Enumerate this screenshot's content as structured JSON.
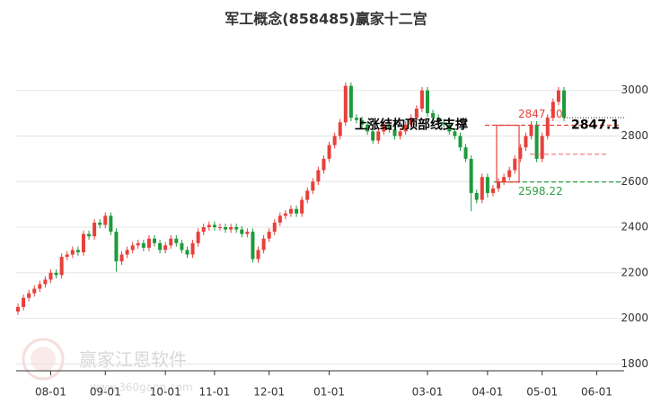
{
  "chart_data": {
    "type": "candlestick",
    "title": "军工概念(858485)赢家十二宫",
    "categories": [
      null,
      null,
      null,
      null,
      null,
      null,
      "08-01",
      null,
      null,
      null,
      null,
      null,
      null,
      null,
      null,
      null,
      "09-01",
      null,
      null,
      null,
      null,
      null,
      null,
      null,
      null,
      null,
      null,
      "10-01",
      null,
      null,
      null,
      null,
      null,
      null,
      null,
      null,
      "11-01",
      null,
      null,
      null,
      null,
      null,
      null,
      null,
      null,
      null,
      "12-01",
      null,
      null,
      null,
      null,
      null,
      null,
      null,
      null,
      null,
      null,
      "01-01",
      null,
      null,
      null,
      null,
      null,
      null,
      null,
      null,
      null,
      null,
      null,
      null,
      null,
      null,
      null,
      null,
      null,
      "03-01",
      null,
      null,
      null,
      null,
      null,
      null,
      null,
      null,
      null,
      null,
      "04-01",
      null,
      null,
      null,
      null,
      null,
      null,
      null,
      null,
      null,
      "05-01",
      null,
      null,
      null,
      null,
      null,
      null,
      null,
      null,
      null,
      "06-01",
      null,
      null,
      null
    ],
    "open": [
      2030,
      2050,
      2090,
      2110,
      2130,
      2150,
      2170,
      2200,
      2190,
      2270,
      2280,
      2300,
      2290,
      2370,
      2360,
      2420,
      2410,
      2450,
      2380,
      2250,
      2280,
      2300,
      2320,
      2330,
      2310,
      2350,
      2330,
      2300,
      2320,
      2350,
      2330,
      2300,
      2280,
      2330,
      2380,
      2400,
      2410,
      2400,
      2400,
      2390,
      2400,
      2390,
      2370,
      2380,
      2260,
      2300,
      2350,
      2380,
      2420,
      2450,
      2460,
      2480,
      2460,
      2520,
      2560,
      2600,
      2650,
      2700,
      2760,
      2800,
      2860,
      3020,
      2880,
      2870,
      2850,
      2820,
      2780,
      2820,
      2850,
      2830,
      2800,
      2820,
      2850,
      2880,
      2920,
      3000,
      2900,
      2880,
      2860,
      2850,
      2820,
      2800,
      2750,
      2700,
      2550,
      2520,
      2620,
      2550,
      2570,
      2600,
      2620,
      2650,
      2700,
      2750,
      2800,
      2850,
      2700,
      2800,
      2880,
      2950,
      3000,
      null,
      null,
      null,
      null,
      null,
      null,
      null,
      null,
      null
    ],
    "high": [
      2065,
      2105,
      2125,
      2145,
      2165,
      2185,
      2215,
      2215,
      2285,
      2295,
      2315,
      2315,
      2385,
      2385,
      2435,
      2435,
      2465,
      2465,
      2395,
      2295,
      2315,
      2335,
      2345,
      2345,
      2365,
      2365,
      2345,
      2335,
      2365,
      2365,
      2345,
      2315,
      2345,
      2395,
      2415,
      2425,
      2425,
      2415,
      2415,
      2415,
      2415,
      2405,
      2395,
      2395,
      2315,
      2365,
      2395,
      2435,
      2465,
      2475,
      2495,
      2495,
      2535,
      2575,
      2615,
      2665,
      2715,
      2775,
      2815,
      2875,
      3035,
      3035,
      2895,
      2885,
      2865,
      2835,
      2835,
      2865,
      2865,
      2845,
      2835,
      2865,
      2895,
      2935,
      3015,
      3015,
      2915,
      2895,
      2875,
      2865,
      2835,
      2815,
      2765,
      2715,
      2565,
      2635,
      2635,
      2585,
      2615,
      2635,
      2665,
      2715,
      2765,
      2815,
      2865,
      2865,
      2815,
      2895,
      2965,
      3015,
      3015,
      null,
      null,
      null,
      null,
      null,
      null,
      null,
      null,
      null
    ],
    "low": [
      2015,
      2035,
      2075,
      2095,
      2115,
      2135,
      2155,
      2175,
      2175,
      2255,
      2265,
      2275,
      2275,
      2345,
      2345,
      2395,
      2395,
      2365,
      2205,
      2235,
      2265,
      2285,
      2305,
      2295,
      2295,
      2315,
      2285,
      2285,
      2305,
      2315,
      2285,
      2265,
      2265,
      2315,
      2365,
      2385,
      2385,
      2385,
      2375,
      2375,
      2375,
      2355,
      2355,
      2245,
      2245,
      2285,
      2335,
      2365,
      2405,
      2435,
      2445,
      2445,
      2445,
      2505,
      2545,
      2585,
      2635,
      2685,
      2745,
      2785,
      2845,
      2865,
      2855,
      2835,
      2805,
      2765,
      2765,
      2805,
      2815,
      2785,
      2785,
      2805,
      2835,
      2865,
      2905,
      2885,
      2865,
      2845,
      2835,
      2805,
      2785,
      2735,
      2685,
      2470,
      2505,
      2505,
      2530,
      2535,
      2555,
      2585,
      2605,
      2635,
      2685,
      2735,
      2785,
      2685,
      2685,
      2785,
      2865,
      2935,
      2865,
      null,
      null,
      null,
      null,
      null,
      null,
      null,
      null,
      null
    ],
    "close": [
      2050,
      2090,
      2110,
      2130,
      2150,
      2170,
      2200,
      2190,
      2270,
      2280,
      2300,
      2290,
      2370,
      2360,
      2420,
      2410,
      2450,
      2380,
      2250,
      2280,
      2300,
      2320,
      2330,
      2310,
      2350,
      2330,
      2300,
      2320,
      2350,
      2330,
      2300,
      2280,
      2330,
      2380,
      2400,
      2410,
      2400,
      2400,
      2390,
      2400,
      2390,
      2370,
      2380,
      2260,
      2300,
      2350,
      2380,
      2420,
      2450,
      2460,
      2480,
      2460,
      2520,
      2560,
      2600,
      2650,
      2700,
      2760,
      2800,
      2860,
      3020,
      2880,
      2870,
      2850,
      2820,
      2780,
      2820,
      2850,
      2830,
      2800,
      2820,
      2850,
      2880,
      2920,
      3000,
      2900,
      2880,
      2860,
      2850,
      2820,
      2800,
      2750,
      2700,
      2550,
      2520,
      2620,
      2550,
      2570,
      2600,
      2620,
      2650,
      2700,
      2750,
      2800,
      2850,
      2700,
      2800,
      2880,
      2950,
      3000,
      2880,
      null,
      null,
      null,
      null,
      null,
      null,
      null,
      null,
      null
    ],
    "up_color": "#e8403a",
    "down_color": "#1e9a3c",
    "ylim": [
      1770,
      3180
    ],
    "yticks": [
      1800,
      2000,
      2200,
      2400,
      2600,
      2800,
      3000
    ],
    "grid": true,
    "levels": [
      {
        "value": 2847.1,
        "label": "2847.10",
        "color": "#e8403a"
      },
      {
        "value": 2598.22,
        "label": "2598.22",
        "color": "#2ea043"
      },
      {
        "value": 2720,
        "color": "#f07070"
      }
    ],
    "last_label": {
      "value": 2847.1,
      "label": "2847.1"
    },
    "annotation": "上涨结构顶部线支撑",
    "watermark": "赢家江恩软件",
    "watermark_url": "www.360gann.com"
  }
}
